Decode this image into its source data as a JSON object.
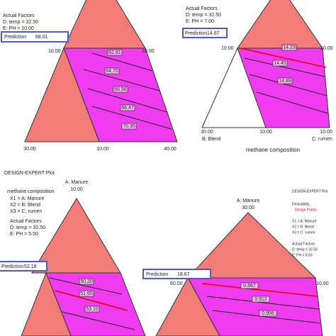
{
  "panels": [
    {
      "factors_heading": "Actual Factors",
      "factors": [
        "D: temp = 32.50",
        "E: PH = 10.00"
      ],
      "prediction_label": "Prediction",
      "prediction": "68.01",
      "vertex_labels": [
        "10.00",
        "10.00"
      ],
      "axis_labels": [
        "30.00",
        "10.00",
        "40.00"
      ],
      "contour_labels": [
        "62.81",
        "64.70",
        "66.58",
        "68.47",
        "70.35"
      ]
    },
    {
      "factors_heading": "Actual Factors",
      "factors": [
        "D: temp = 32.50",
        "E: PH = 7.00"
      ],
      "prediction_label": "Prediction",
      "prediction": "14.67",
      "vertex_labels": [
        "10.00",
        "10.00"
      ],
      "axis_labels": [
        "30.00",
        "10.00",
        "10.00"
      ],
      "axis_names": [
        "B: Blend",
        "C: rumen"
      ],
      "title": "methane composition",
      "contour_labels": [
        "14.23",
        "14.45",
        "14.89"
      ]
    },
    {
      "plot_label": "DESIGN-EXPERT Plot",
      "response": "methane composition",
      "design": [
        "X1 = A: Manure",
        "X2 = B: Blend",
        "X3 = C: rumen"
      ],
      "factors_heading": "Actual Factors",
      "factors": [
        "D: temp = 32.50",
        "E: PH = 5.50"
      ],
      "prediction_label": "Prediction",
      "prediction": "52.18",
      "vertex_name": "A: Manure",
      "vertex_labels": [
        "10.00"
      ],
      "contour_labels": [
        "50.20",
        "51.65",
        "53.10"
      ]
    },
    {
      "plot_label": "DESIGN-EXPERT Plot",
      "response": "Desirability",
      "legend": "Design Points",
      "design": [
        "X1 = A: Manure",
        "X2 = B: Blend",
        "X3 = C: rumen"
      ],
      "factors_heading": "Actual Factors",
      "factors": [
        "D: temp = 32.50",
        "E: PH = 8.50"
      ],
      "prediction_label": "Prediction",
      "prediction": "18.67",
      "vertex_name": "A: Manure",
      "vertex_labels": [
        "30.00",
        "60.00",
        "10.00"
      ],
      "contour_labels": [
        "0.867",
        "0.912",
        "0.956"
      ]
    }
  ]
}
